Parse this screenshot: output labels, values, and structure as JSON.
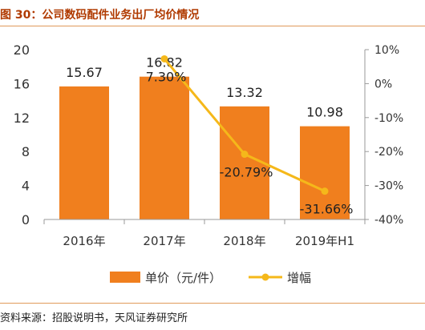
{
  "title": "图 30：公司数码配件业务出厂均价情况",
  "source": "资料来源：招股说明书，天风证券研究所",
  "chart_data": {
    "type": "bar",
    "categories": [
      "2016年",
      "2017年",
      "2018年",
      "2019年H1"
    ],
    "series": [
      {
        "name": "单价（元/件）",
        "type": "bar",
        "axis": "left",
        "color": "#f07f1e",
        "values": [
          15.67,
          16.82,
          13.32,
          10.98
        ],
        "labels": [
          "15.67",
          "16.82",
          "13.32",
          "10.98"
        ]
      },
      {
        "name": "增幅",
        "type": "line",
        "axis": "right",
        "color": "#f5b81a",
        "values": [
          null,
          7.3,
          -20.79,
          -31.66
        ],
        "labels": [
          "",
          "7.30%",
          "-20.79%",
          "-31.66%"
        ]
      }
    ],
    "y_left": {
      "min": 0,
      "max": 20,
      "ticks": [
        0,
        4,
        8,
        12,
        16,
        20
      ],
      "tick_labels": [
        "0",
        "4",
        "8",
        "12",
        "16",
        "20"
      ]
    },
    "y_right": {
      "min": -40,
      "max": 10,
      "ticks": [
        10,
        0,
        -10,
        -20,
        -30,
        -40
      ],
      "tick_labels": [
        "10%",
        "0%",
        "-10%",
        "-20%",
        "-30%",
        "-40%"
      ]
    },
    "legend_position": "bottom",
    "grid": false
  }
}
